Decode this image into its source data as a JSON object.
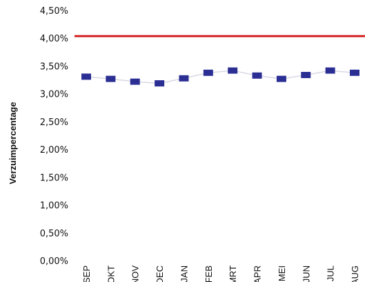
{
  "chart_data": {
    "type": "line",
    "title": "",
    "xlabel": "",
    "ylabel": "Verzuimpercentage",
    "categories": [
      "SEP",
      "OKT",
      "NOV",
      "DEC",
      "JAN",
      "FEB",
      "MRT",
      "APR",
      "MEI",
      "JUN",
      "JUL",
      "AUG"
    ],
    "y_tick_labels": [
      "0,00%",
      "0,50%",
      "1,00%",
      "1,50%",
      "2,00%",
      "2,50%",
      "3,00%",
      "3,50%",
      "4,00%",
      "4,50%"
    ],
    "ylim": [
      0,
      4.5
    ],
    "y_ticks": [
      0,
      0.5,
      1.0,
      1.5,
      2.0,
      2.5,
      3.0,
      3.5,
      4.0,
      4.5
    ],
    "grid": false,
    "legend": "none",
    "series": [
      {
        "values": [
          3.32,
          3.28,
          3.23,
          3.2,
          3.29,
          3.39,
          3.43,
          3.34,
          3.28,
          3.35,
          3.43,
          3.39
        ],
        "color": "#2b2f94",
        "marker": "square",
        "line_color": "#d8d8e4"
      }
    ],
    "reference_line": {
      "value": 4.05,
      "color": "#d42020"
    }
  }
}
